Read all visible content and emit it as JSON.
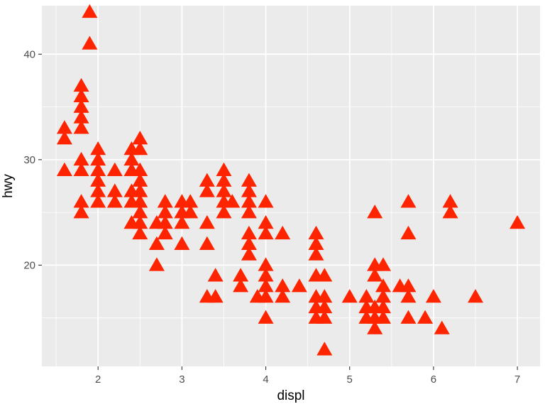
{
  "chart_data": {
    "type": "scatter",
    "xlabel": "displ",
    "ylabel": "hwy",
    "xlim": [
      1.33,
      7.27
    ],
    "ylim": [
      10.4,
      44.6
    ],
    "x_ticks": [
      2,
      3,
      4,
      5,
      6,
      7
    ],
    "y_ticks": [
      20,
      30,
      40
    ],
    "x_tick_labels": [
      "2",
      "3",
      "4",
      "5",
      "6",
      "7"
    ],
    "y_tick_labels": [
      "20",
      "30",
      "40"
    ],
    "grid": true,
    "marker": "triangle",
    "colors": {
      "panel": "#ebebeb",
      "grid": "#ffffff",
      "point": "#ff2400",
      "tick": "#333333"
    },
    "points": [
      [
        1.6,
        33
      ],
      [
        1.6,
        32
      ],
      [
        1.6,
        29
      ],
      [
        1.8,
        37
      ],
      [
        1.8,
        36
      ],
      [
        1.8,
        35
      ],
      [
        1.8,
        34
      ],
      [
        1.8,
        33
      ],
      [
        1.8,
        30
      ],
      [
        1.8,
        29
      ],
      [
        1.8,
        26
      ],
      [
        1.8,
        25
      ],
      [
        1.9,
        44
      ],
      [
        1.9,
        41
      ],
      [
        2.0,
        31
      ],
      [
        2.0,
        30
      ],
      [
        2.0,
        29
      ],
      [
        2.0,
        28
      ],
      [
        2.0,
        27
      ],
      [
        2.0,
        26
      ],
      [
        2.2,
        29
      ],
      [
        2.2,
        27
      ],
      [
        2.2,
        26
      ],
      [
        2.4,
        31
      ],
      [
        2.4,
        30
      ],
      [
        2.4,
        29
      ],
      [
        2.4,
        27
      ],
      [
        2.4,
        26
      ],
      [
        2.4,
        24
      ],
      [
        2.5,
        32
      ],
      [
        2.5,
        31
      ],
      [
        2.5,
        29
      ],
      [
        2.5,
        28
      ],
      [
        2.5,
        27
      ],
      [
        2.5,
        26
      ],
      [
        2.5,
        25
      ],
      [
        2.5,
        24
      ],
      [
        2.5,
        23
      ],
      [
        2.7,
        24
      ],
      [
        2.7,
        22
      ],
      [
        2.7,
        20
      ],
      [
        2.8,
        26
      ],
      [
        2.8,
        25
      ],
      [
        2.8,
        24
      ],
      [
        2.8,
        23
      ],
      [
        3.0,
        26
      ],
      [
        3.0,
        25
      ],
      [
        3.0,
        24
      ],
      [
        3.0,
        22
      ],
      [
        3.1,
        26
      ],
      [
        3.1,
        25
      ],
      [
        3.3,
        28
      ],
      [
        3.3,
        27
      ],
      [
        3.3,
        24
      ],
      [
        3.3,
        22
      ],
      [
        3.3,
        17
      ],
      [
        3.4,
        19
      ],
      [
        3.4,
        17
      ],
      [
        3.5,
        29
      ],
      [
        3.5,
        28
      ],
      [
        3.5,
        27
      ],
      [
        3.5,
        26
      ],
      [
        3.5,
        25
      ],
      [
        3.6,
        26
      ],
      [
        3.7,
        19
      ],
      [
        3.7,
        18
      ],
      [
        3.8,
        28
      ],
      [
        3.8,
        27
      ],
      [
        3.8,
        26
      ],
      [
        3.8,
        25
      ],
      [
        3.8,
        23
      ],
      [
        3.8,
        22
      ],
      [
        3.8,
        21
      ],
      [
        3.9,
        17
      ],
      [
        4.0,
        26
      ],
      [
        4.0,
        24
      ],
      [
        4.0,
        23
      ],
      [
        4.0,
        20
      ],
      [
        4.0,
        19
      ],
      [
        4.0,
        18
      ],
      [
        4.0,
        17
      ],
      [
        4.0,
        15
      ],
      [
        4.2,
        23
      ],
      [
        4.2,
        18
      ],
      [
        4.2,
        17
      ],
      [
        4.4,
        18
      ],
      [
        4.6,
        23
      ],
      [
        4.6,
        22
      ],
      [
        4.6,
        21
      ],
      [
        4.6,
        19
      ],
      [
        4.6,
        17
      ],
      [
        4.6,
        16
      ],
      [
        4.6,
        15
      ],
      [
        4.7,
        19
      ],
      [
        4.7,
        17
      ],
      [
        4.7,
        16
      ],
      [
        4.7,
        15
      ],
      [
        4.7,
        12
      ],
      [
        5.0,
        17
      ],
      [
        5.2,
        17
      ],
      [
        5.2,
        16
      ],
      [
        5.2,
        15
      ],
      [
        5.3,
        25
      ],
      [
        5.3,
        20
      ],
      [
        5.3,
        19
      ],
      [
        5.3,
        16
      ],
      [
        5.3,
        15
      ],
      [
        5.3,
        14
      ],
      [
        5.4,
        20
      ],
      [
        5.4,
        18
      ],
      [
        5.4,
        17
      ],
      [
        5.4,
        16
      ],
      [
        5.4,
        15
      ],
      [
        5.6,
        18
      ],
      [
        5.7,
        26
      ],
      [
        5.7,
        23
      ],
      [
        5.7,
        18
      ],
      [
        5.7,
        17
      ],
      [
        5.7,
        15
      ],
      [
        5.9,
        15
      ],
      [
        6.0,
        17
      ],
      [
        6.1,
        14
      ],
      [
        6.2,
        26
      ],
      [
        6.2,
        25
      ],
      [
        6.5,
        17
      ],
      [
        7.0,
        24
      ]
    ]
  }
}
